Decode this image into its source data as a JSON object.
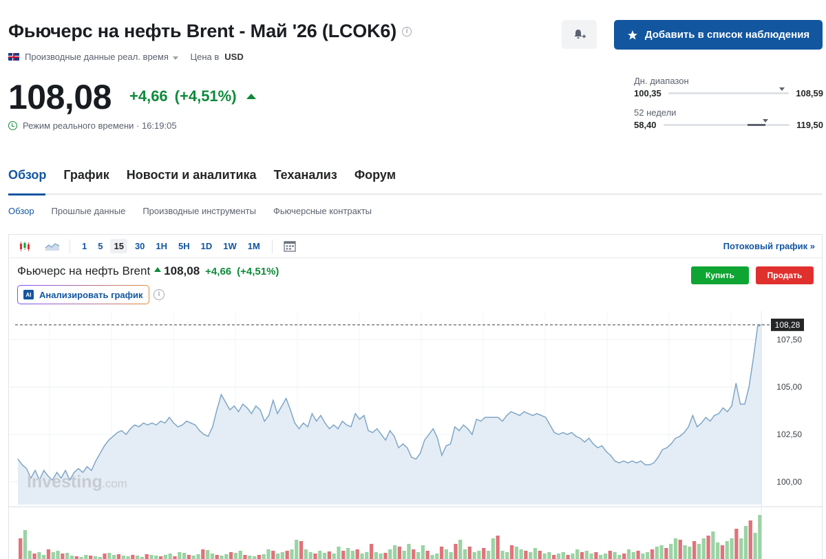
{
  "header": {
    "title": "Фьючерс на нефть Brent - Май '26 (LCOK6)",
    "info_icon": "i",
    "data_type": "Производные данные реал. время",
    "price_in_label": "Цена в",
    "currency": "USD",
    "watchlist_label": "Добавить в список наблюдения"
  },
  "quote": {
    "price": "108,08",
    "change": "+4,66",
    "change_pct": "(+4,51%)",
    "realtime_label": "Режим реального времени · 16:19:05"
  },
  "ranges": {
    "day": {
      "label": "Дн. диапазон",
      "low": "100,35",
      "high": "108,59",
      "position": 0.94
    },
    "week52": {
      "label": "52 недели",
      "low": "58,40",
      "high": "119,50",
      "position": 0.81
    }
  },
  "tabs": [
    "Обзор",
    "График",
    "Новости и аналитика",
    "Теханализ",
    "Форум"
  ],
  "subtabs": [
    "Обзор",
    "Прошлые данные",
    "Производные инструменты",
    "Фьючерсные контракты"
  ],
  "toolbar": {
    "intervals": [
      "1",
      "5",
      "15",
      "30",
      "1H",
      "5H",
      "1D",
      "1W",
      "1M"
    ],
    "active_interval": "15",
    "streaming_label": "Потоковый график »"
  },
  "chart_header": {
    "name": "Фьючерс на нефть Brent",
    "price": "108,08",
    "change": "+4,66",
    "change_pct": "(+4,51%)",
    "ai_label": "Анализировать график",
    "ai_badge": "AI",
    "buy_label": "Купить",
    "sell_label": "Продать"
  },
  "watermark": {
    "brand": "Investing",
    "suffix": ".com"
  },
  "colors": {
    "accent": "#1256a0",
    "up": "#0e8a3a",
    "buy": "#0ea533",
    "sell": "#e0302e",
    "line": "#7fa5c7",
    "area": "#e4edf5",
    "vol_up": "#9bd3a4",
    "vol_down": "#e0737a"
  },
  "chart_data": {
    "type": "area",
    "ylim": [
      98.8,
      109.0
    ],
    "y_ticks": [
      "107,50",
      "105,00",
      "102,50",
      "100,00"
    ],
    "y_tick_values": [
      107.5,
      105.0,
      102.5,
      100.0
    ],
    "last_value": 108.28,
    "last_label": "108,28",
    "values": [
      101.2,
      100.9,
      100.7,
      100.2,
      100.6,
      100.1,
      100.6,
      100.3,
      100.1,
      100.5,
      100.2,
      100.6,
      100.1,
      100.5,
      100.7,
      100.5,
      100.8,
      100.6,
      101.1,
      101.5,
      101.9,
      102.2,
      102.4,
      102.6,
      102.7,
      102.5,
      102.8,
      103.0,
      102.9,
      103.1,
      103.0,
      103.1,
      103.0,
      103.2,
      103.1,
      103.4,
      103.1,
      102.9,
      103.0,
      103.2,
      103.1,
      103.0,
      102.7,
      102.5,
      102.4,
      102.9,
      103.8,
      104.6,
      104.2,
      103.8,
      104.0,
      103.7,
      104.1,
      103.9,
      103.6,
      104.0,
      103.8,
      103.2,
      103.5,
      104.3,
      103.6,
      104.0,
      104.4,
      103.8,
      103.1,
      102.8,
      103.1,
      102.9,
      103.6,
      103.2,
      103.5,
      103.1,
      102.8,
      103.0,
      102.8,
      103.2,
      103.0,
      102.9,
      103.6,
      103.3,
      103.5,
      102.7,
      102.6,
      102.8,
      102.5,
      102.2,
      102.7,
      102.4,
      101.8,
      102.0,
      101.8,
      101.3,
      101.2,
      101.5,
      102.2,
      102.5,
      102.8,
      102.3,
      101.4,
      101.9,
      102.0,
      102.9,
      102.7,
      103.0,
      102.8,
      102.5,
      103.3,
      103.2,
      103.4,
      103.4,
      103.4,
      103.4,
      103.2,
      103.5,
      103.7,
      103.6,
      103.5,
      103.7,
      103.6,
      103.5,
      103.6,
      103.5,
      103.4,
      103.0,
      102.6,
      102.5,
      102.6,
      102.5,
      102.6,
      102.4,
      102.3,
      102.1,
      102.3,
      102.0,
      101.8,
      101.9,
      101.6,
      101.4,
      101.1,
      101.0,
      101.1,
      101.0,
      101.1,
      101.0,
      101.1,
      100.9,
      100.9,
      101.0,
      101.3,
      101.7,
      101.8,
      102.0,
      102.3,
      102.4,
      102.6,
      102.9,
      103.5,
      102.9,
      103.1,
      103.4,
      103.2,
      103.5,
      103.6,
      103.9,
      103.7,
      104.0,
      105.2,
      104.1,
      104.1,
      105.0,
      106.5,
      108.2,
      108.3
    ]
  }
}
